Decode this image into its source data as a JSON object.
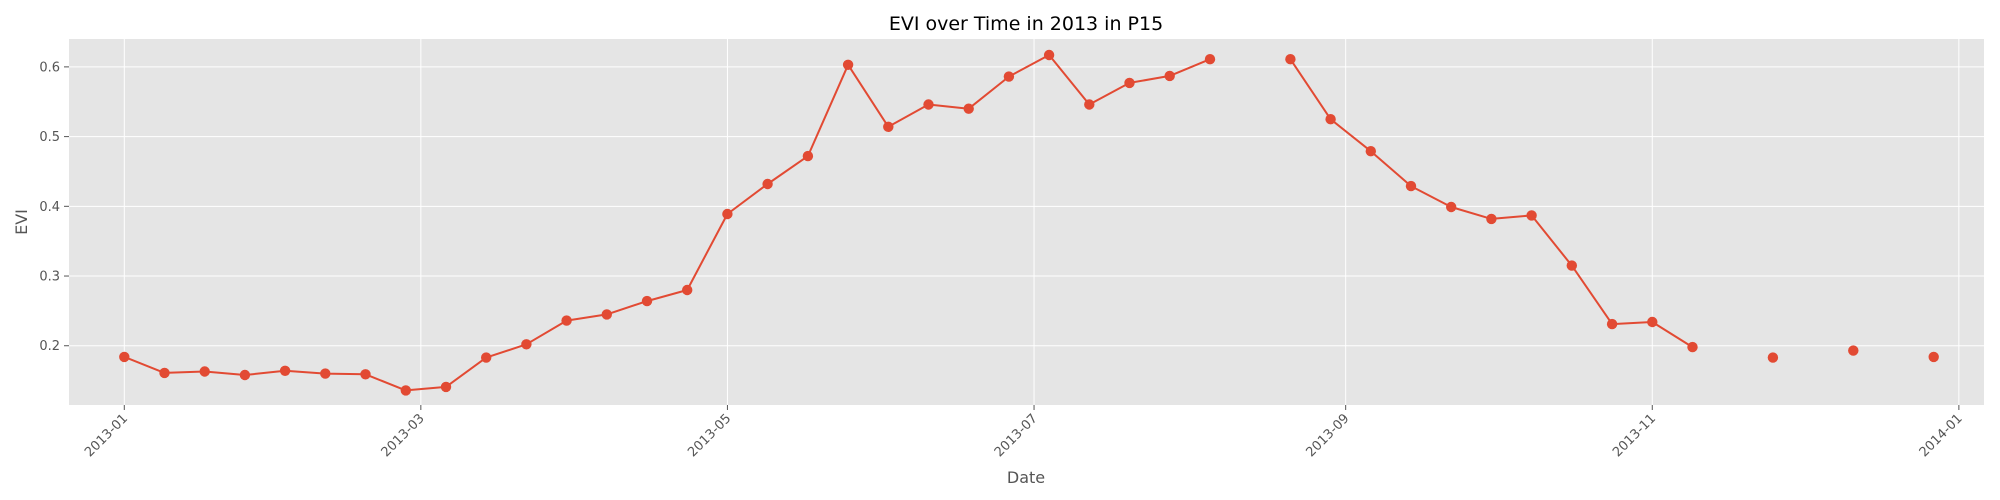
{
  "chart_data": {
    "type": "line",
    "title": "EVI over Time in 2013 in P15",
    "xlabel": "Date",
    "ylabel": "EVI",
    "x_is_date": true,
    "xlim": [
      "2012-12-21",
      "2014-01-06"
    ],
    "ylim": [
      0.115,
      0.64
    ],
    "grid": true,
    "legend": "none",
    "x_ticks": [
      "2013-01",
      "2013-03",
      "2013-05",
      "2013-07",
      "2013-09",
      "2013-11",
      "2014-01"
    ],
    "y_ticks": [
      "0.2",
      "0.3",
      "0.4",
      "0.5",
      "0.6"
    ],
    "series": [
      {
        "color": "#e24a33",
        "points": [
          {
            "x": "2013-01-01",
            "y": 0.184
          },
          {
            "x": "2013-01-09",
            "y": 0.161
          },
          {
            "x": "2013-01-17",
            "y": 0.163
          },
          {
            "x": "2013-01-25",
            "y": 0.158
          },
          {
            "x": "2013-02-02",
            "y": 0.164
          },
          {
            "x": "2013-02-10",
            "y": 0.16
          },
          {
            "x": "2013-02-18",
            "y": 0.159
          },
          {
            "x": "2013-02-26",
            "y": 0.136
          },
          {
            "x": "2013-03-06",
            "y": 0.141
          },
          {
            "x": "2013-03-14",
            "y": 0.183
          },
          {
            "x": "2013-03-22",
            "y": 0.202
          },
          {
            "x": "2013-03-30",
            "y": 0.236
          },
          {
            "x": "2013-04-07",
            "y": 0.245
          },
          {
            "x": "2013-04-15",
            "y": 0.264
          },
          {
            "x": "2013-04-23",
            "y": 0.28
          },
          {
            "x": "2013-05-01",
            "y": 0.389
          },
          {
            "x": "2013-05-09",
            "y": 0.432
          },
          {
            "x": "2013-05-17",
            "y": 0.472
          },
          {
            "x": "2013-05-25",
            "y": 0.603
          },
          {
            "x": "2013-06-02",
            "y": 0.514
          },
          {
            "x": "2013-06-10",
            "y": 0.546
          },
          {
            "x": "2013-06-18",
            "y": 0.54
          },
          {
            "x": "2013-06-26",
            "y": 0.586
          },
          {
            "x": "2013-07-04",
            "y": 0.617
          },
          {
            "x": "2013-07-12",
            "y": 0.546
          },
          {
            "x": "2013-07-20",
            "y": 0.577
          },
          {
            "x": "2013-07-28",
            "y": 0.587
          },
          {
            "x": "2013-08-05",
            "y": 0.611
          },
          {
            "x": "2013-08-13",
            "y": null
          },
          {
            "x": "2013-08-21",
            "y": 0.611
          },
          {
            "x": "2013-08-29",
            "y": 0.525
          },
          {
            "x": "2013-09-06",
            "y": 0.479
          },
          {
            "x": "2013-09-14",
            "y": 0.429
          },
          {
            "x": "2013-09-22",
            "y": 0.399
          },
          {
            "x": "2013-09-30",
            "y": 0.382
          },
          {
            "x": "2013-10-08",
            "y": 0.387
          },
          {
            "x": "2013-10-16",
            "y": 0.315
          },
          {
            "x": "2013-10-24",
            "y": 0.231
          },
          {
            "x": "2013-11-01",
            "y": 0.234
          },
          {
            "x": "2013-11-09",
            "y": 0.198
          },
          {
            "x": "2013-11-17",
            "y": null
          },
          {
            "x": "2013-11-25",
            "y": 0.183
          },
          {
            "x": "2013-12-03",
            "y": null
          },
          {
            "x": "2013-12-11",
            "y": 0.193
          },
          {
            "x": "2013-12-19",
            "y": null
          },
          {
            "x": "2013-12-27",
            "y": 0.184
          }
        ]
      }
    ]
  }
}
